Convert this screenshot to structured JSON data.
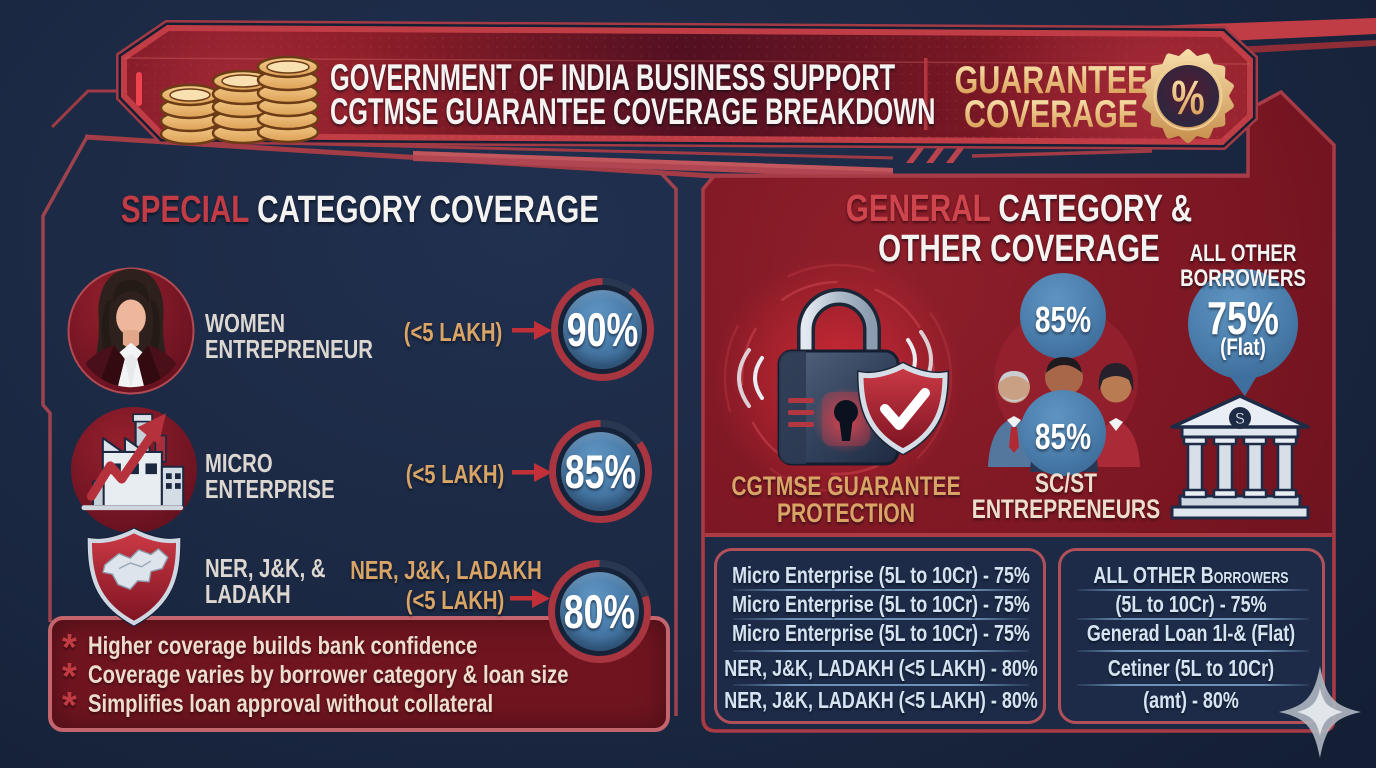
{
  "header": {
    "title_line1": "GOVERNMENT OF INDIA BUSINESS SUPPORT",
    "title_line2": "CGTMSE GUARANTEE COVERAGE BREAKDOWN",
    "right_label_line1": "GUARANTEE",
    "right_label_line2": "COVERAGE",
    "badge_symbol": "%"
  },
  "left_panel": {
    "title_accent": "SPECIAL",
    "title_rest": " CATEGORY COVERAGE",
    "rows": [
      {
        "label_line1": "WOMEN",
        "label_line2": "ENTREPRENEUR",
        "condition": "(<5 LAKH)",
        "value": "90%",
        "percent": 90
      },
      {
        "label_line1": "MICRO",
        "label_line2": "ENTERPRISE",
        "condition": "(<5 LAKH)",
        "value": "85%",
        "percent": 85
      },
      {
        "label_line1": "NER, J&K, &",
        "label_line2": "LADAKH",
        "condition_line1": "NER, J&K, LADAKH",
        "condition_line2": "(<5 LAKH)",
        "value": "80%",
        "percent": 80
      }
    ],
    "notes": [
      "Higher coverage builds bank confidence",
      "Coverage varies by borrower category & loan size",
      "Simplifies loan approval without collateral"
    ],
    "note_bullet": "*"
  },
  "right_panel": {
    "title_accent": "GENERAL",
    "title_rest": " CATEGORY &",
    "title_line2": "OTHER COVERAGE",
    "lock_caption_line1": "CGTMSE GUARANTEE",
    "lock_caption_line2": "PROTECTION",
    "scst_value_top": "85%",
    "scst_value_bottom": "85%",
    "scst_caption_line1": "SC/ST",
    "scst_caption_line2": "ENTREPRENEURS",
    "other_label_line1": "ALL OTHER",
    "other_label_line2": "BORROWERS",
    "other_value": "75%",
    "other_value_note": "(Flat)",
    "bank_symbol": "$",
    "breakdown_left": [
      "Micro Enterprise (5L to 10Cr) - 75%",
      "Micro Enterprise (5L to 10Cr) - 75%",
      "Micro Enterprise (5L to 10Cr) - 75%",
      "NER, J&K, LADAKH (<5 LAKH) - 80%",
      "NER, J&K, LADAKH (<5 LAKH) - 80%"
    ],
    "breakdown_right": [
      "ALL OTHER Borrowers",
      "(5L to 10Cr) - 75%",
      "Generad Loan 1l-& (Flat)",
      "Cetiner (5L to 10Cr)",
      "(amt) - 80%"
    ]
  },
  "colors": {
    "ring_fill": "#a8353f",
    "ring_gap": "#2a3750",
    "accent_red": "#c23b45",
    "gold": "#d9a566",
    "circle_blue": "#4a7dab",
    "panel_maroon": "#7c1722",
    "background_navy": "#1b2842"
  }
}
